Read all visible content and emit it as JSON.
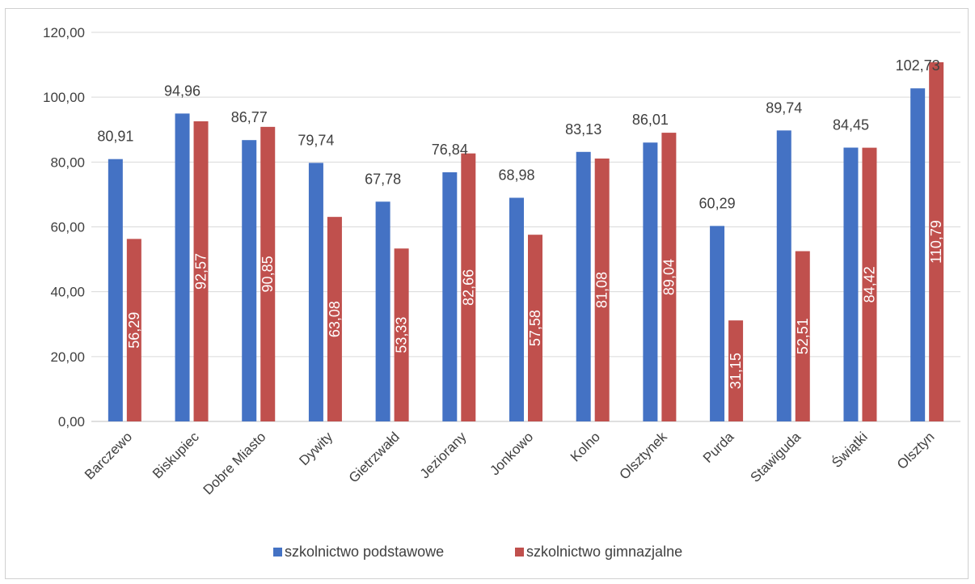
{
  "chart_data": {
    "type": "bar",
    "title": "",
    "xlabel": "",
    "ylabel": "",
    "ylim": [
      0,
      120
    ],
    "yticks": [
      "0,00",
      "20,00",
      "40,00",
      "60,00",
      "80,00",
      "100,00",
      "120,00"
    ],
    "ytick_values": [
      0,
      20,
      40,
      60,
      80,
      100,
      120
    ],
    "grid": true,
    "legend_position": "bottom",
    "categories": [
      "Barczewo",
      "Biskupiec",
      "Dobre Miasto",
      "Dywity",
      "Gietrzwałd",
      "Jeziorany",
      "Jonkowo",
      "Kolno",
      "Olsztynek",
      "Purda",
      "Stawiguda",
      "Świątki",
      "Olsztyn"
    ],
    "series": [
      {
        "name": "szkolnictwo podstawowe",
        "color": "#4472c4",
        "values": [
          80.91,
          94.96,
          86.77,
          79.74,
          67.78,
          76.84,
          68.98,
          83.13,
          86.01,
          60.29,
          89.74,
          84.45,
          102.73
        ],
        "labels": [
          "80,91",
          "94,96",
          "86,77",
          "79,74",
          "67,78",
          "76,84",
          "68,98",
          "83,13",
          "86,01",
          "60,29",
          "89,74",
          "84,45",
          "102,73"
        ]
      },
      {
        "name": "szkolnictwo gimnazjalne",
        "color": "#c0504d",
        "values": [
          56.29,
          92.57,
          90.85,
          63.08,
          53.33,
          82.66,
          57.58,
          81.08,
          89.04,
          31.15,
          52.51,
          84.42,
          110.79
        ],
        "labels": [
          "56,29",
          "92,57",
          "90,85",
          "63,08",
          "53,33",
          "82,66",
          "57,58",
          "81,08",
          "89,04",
          "31,15",
          "52,51",
          "84,42",
          "110,79"
        ]
      }
    ]
  }
}
